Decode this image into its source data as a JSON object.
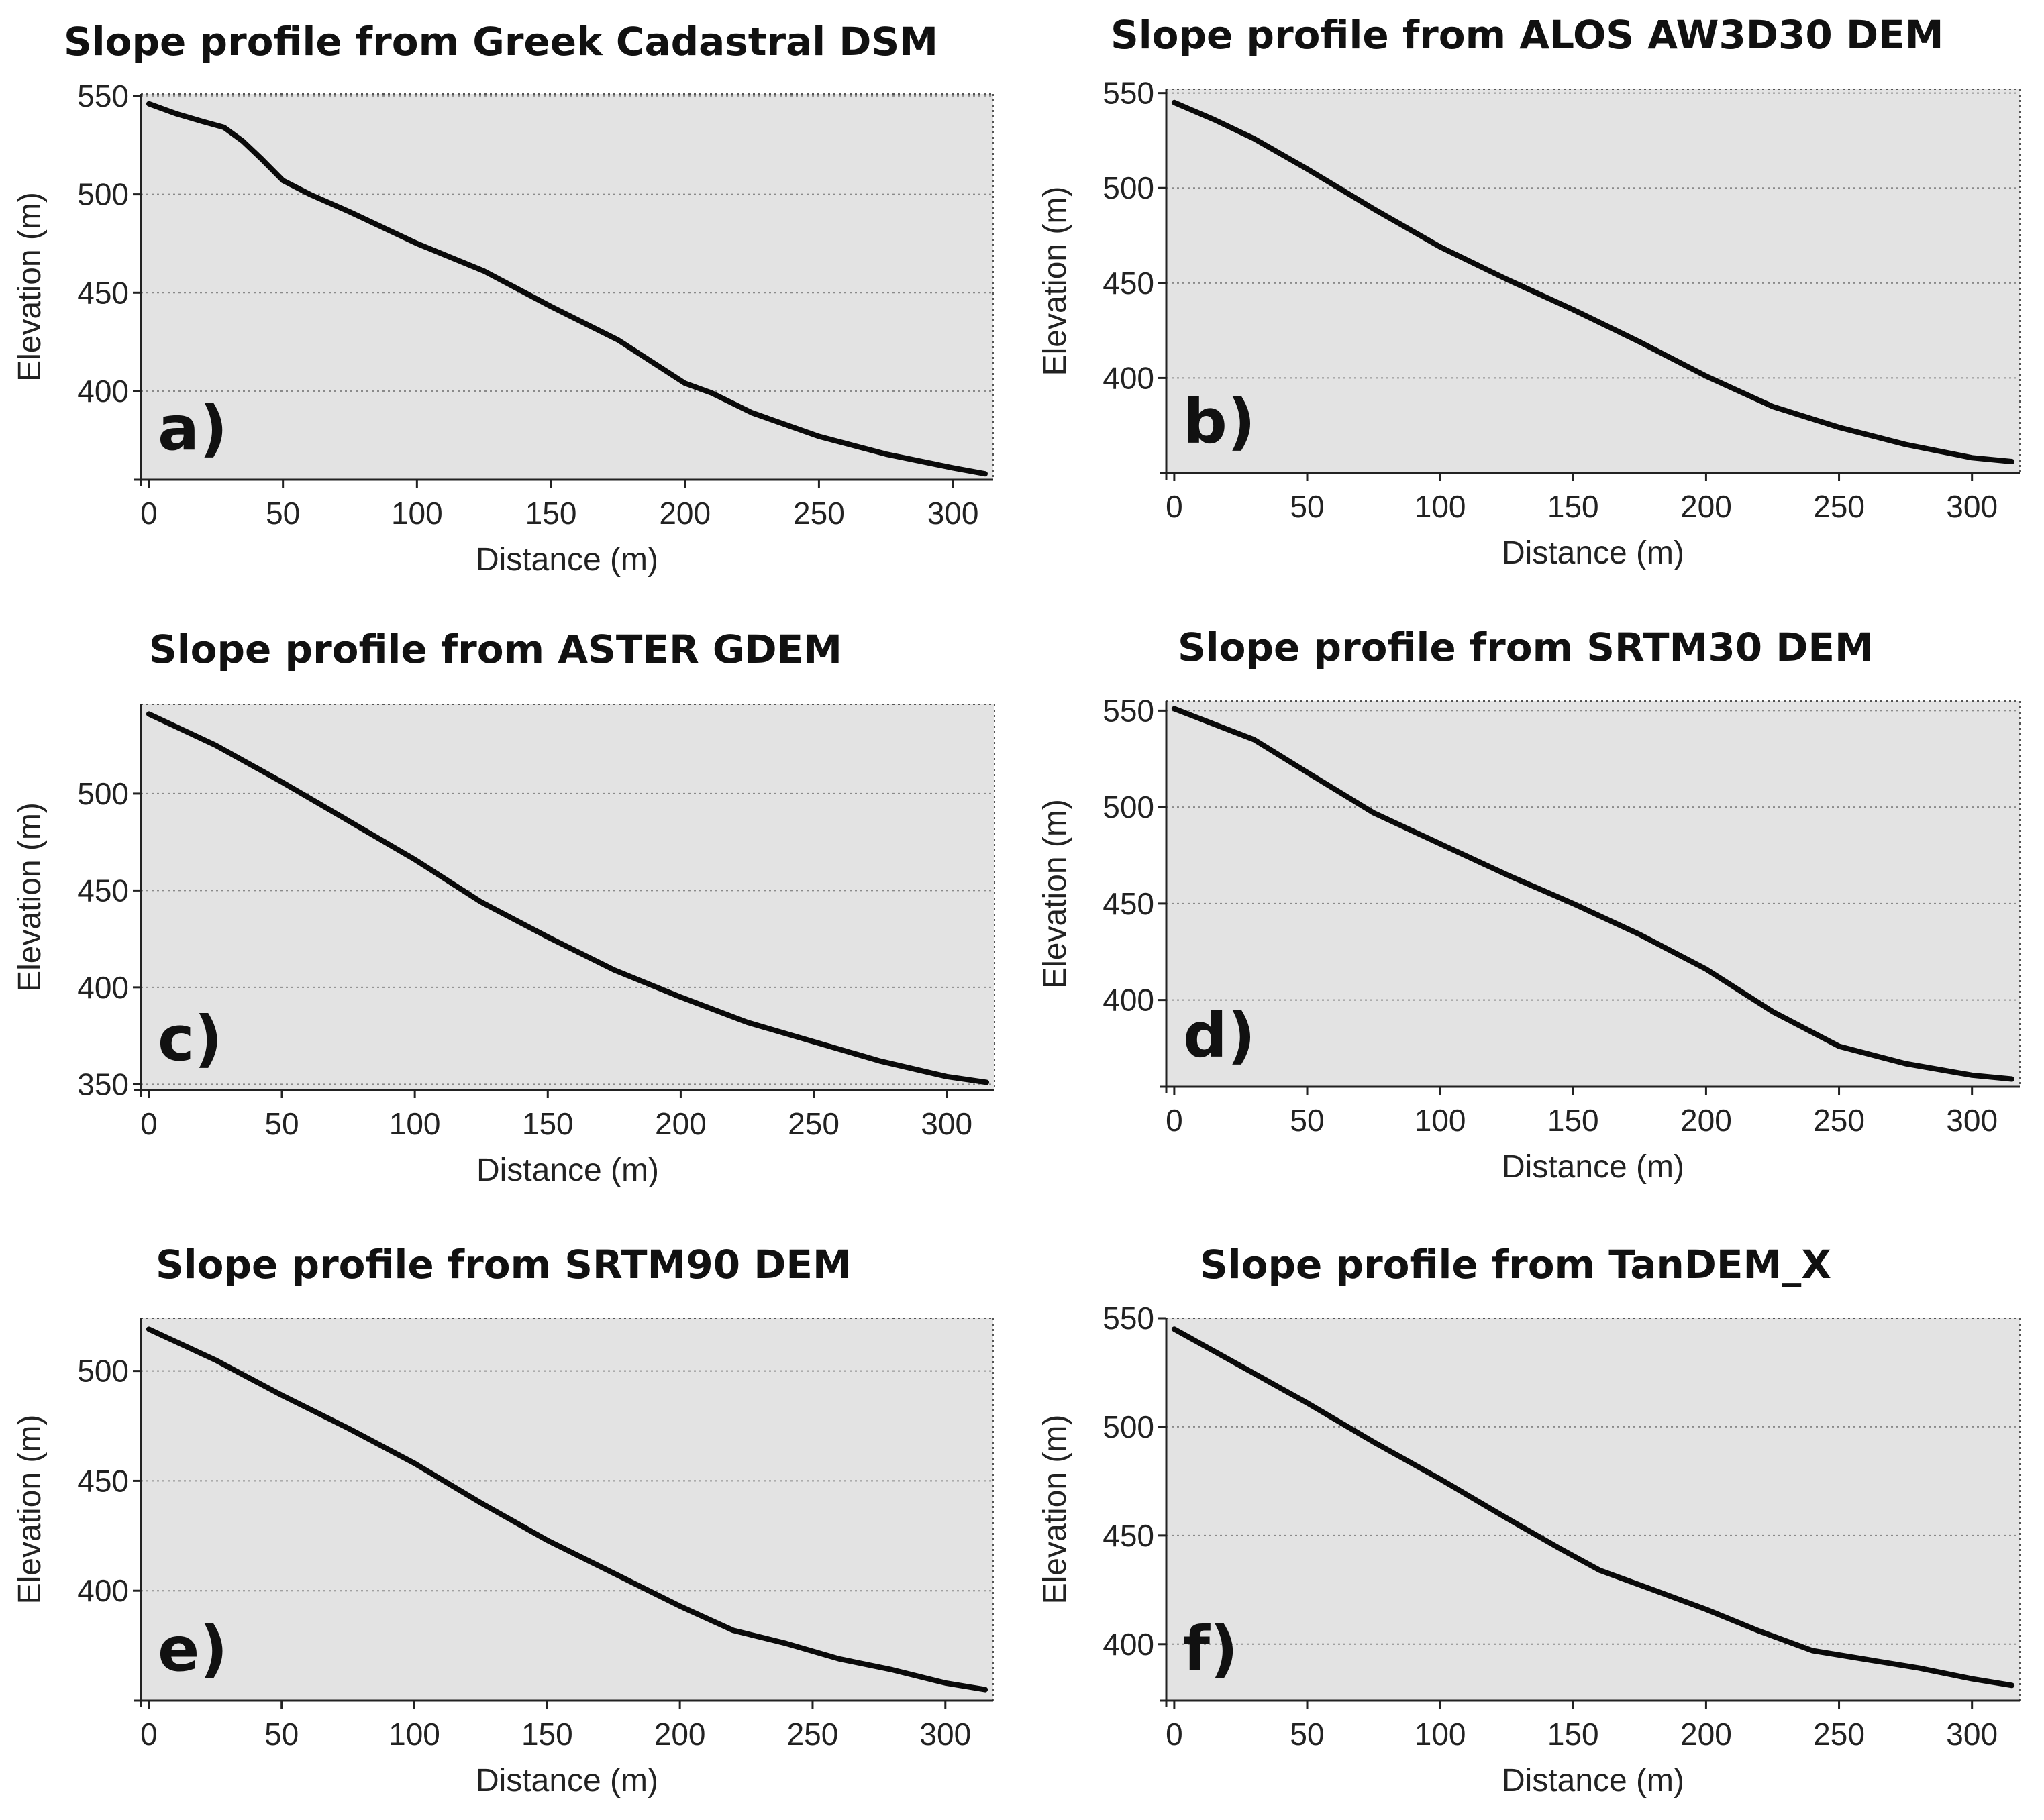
{
  "chart_data": [
    {
      "type": "line",
      "panel_label": "a)",
      "title": "Slope profile from Greek Cadastral DSM",
      "xlabel": "Distance (m)",
      "ylabel": "Elevation (m)",
      "xlim": [
        -3,
        315
      ],
      "ylim": [
        355,
        551
      ],
      "xticks": [
        0,
        50,
        100,
        150,
        200,
        250,
        300
      ],
      "yticks": [
        400,
        450,
        500,
        550
      ],
      "grid": true,
      "x": [
        0,
        10,
        20,
        28,
        35,
        42,
        50,
        60,
        75,
        100,
        125,
        150,
        175,
        200,
        210,
        225,
        250,
        275,
        300,
        312
      ],
      "y": [
        546,
        541,
        537,
        534,
        527,
        518,
        507,
        500,
        491,
        475,
        461,
        443,
        426,
        404,
        399,
        389,
        377,
        368,
        361,
        358
      ]
    },
    {
      "type": "line",
      "panel_label": "b)",
      "title": "Slope profile from ALOS AW3D30 DEM",
      "xlabel": "Distance (m)",
      "ylabel": "Elevation (m)",
      "xlim": [
        -3,
        318
      ],
      "ylim": [
        350,
        552
      ],
      "xticks": [
        0,
        50,
        100,
        150,
        200,
        250,
        300
      ],
      "yticks": [
        400,
        450,
        500,
        550
      ],
      "grid": true,
      "x": [
        0,
        15,
        30,
        50,
        75,
        100,
        125,
        150,
        175,
        200,
        225,
        250,
        275,
        300,
        315
      ],
      "y": [
        545,
        536,
        526,
        510,
        489,
        469,
        452,
        436,
        419,
        401,
        385,
        374,
        365,
        358,
        356
      ]
    },
    {
      "type": "line",
      "panel_label": "c)",
      "title": "Slope profile from ASTER GDEM",
      "xlabel": "Distance (m)",
      "ylabel": "Elevation (m)",
      "xlim": [
        -3,
        318
      ],
      "ylim": [
        347,
        546
      ],
      "xticks": [
        0,
        50,
        100,
        150,
        200,
        250,
        300
      ],
      "yticks": [
        350,
        400,
        450,
        500
      ],
      "grid": true,
      "x": [
        0,
        25,
        50,
        75,
        100,
        125,
        150,
        175,
        200,
        225,
        250,
        275,
        300,
        315
      ],
      "y": [
        541,
        525,
        506,
        486,
        466,
        444,
        426,
        409,
        395,
        382,
        372,
        362,
        354,
        351
      ]
    },
    {
      "type": "line",
      "panel_label": "d)",
      "title": "Slope profile from SRTM30 DEM",
      "xlabel": "Distance (m)",
      "ylabel": "Elevation (m)",
      "xlim": [
        -3,
        318
      ],
      "ylim": [
        355,
        555
      ],
      "xticks": [
        0,
        50,
        100,
        150,
        200,
        250,
        300
      ],
      "yticks": [
        400,
        450,
        500,
        550
      ],
      "grid": true,
      "x": [
        0,
        15,
        30,
        50,
        75,
        100,
        125,
        150,
        175,
        200,
        225,
        250,
        275,
        300,
        315
      ],
      "y": [
        551,
        543,
        535,
        518,
        497,
        481,
        465,
        450,
        434,
        416,
        394,
        376,
        367,
        361,
        359
      ]
    },
    {
      "type": "line",
      "panel_label": "e)",
      "title": "Slope profile from SRTM90 DEM",
      "xlabel": "Distance (m)",
      "ylabel": "Elevation (m)",
      "xlim": [
        -3,
        318
      ],
      "ylim": [
        350,
        524
      ],
      "xticks": [
        0,
        50,
        100,
        150,
        200,
        250,
        300
      ],
      "yticks": [
        400,
        450,
        500
      ],
      "grid": true,
      "x": [
        0,
        25,
        50,
        75,
        100,
        125,
        150,
        175,
        200,
        220,
        240,
        260,
        280,
        300,
        315
      ],
      "y": [
        519,
        505,
        489,
        474,
        458,
        440,
        423,
        408,
        393,
        382,
        376,
        369,
        364,
        358,
        355
      ]
    },
    {
      "type": "line",
      "panel_label": "f)",
      "title": "Slope profile from TanDEM_X",
      "xlabel": "Distance (m)",
      "ylabel": "Elevation (m)",
      "xlim": [
        -3,
        318
      ],
      "ylim": [
        374,
        550
      ],
      "xticks": [
        0,
        50,
        100,
        150,
        200,
        250,
        300
      ],
      "yticks": [
        400,
        450,
        500,
        550
      ],
      "grid": true,
      "x": [
        0,
        25,
        50,
        75,
        100,
        125,
        145,
        160,
        180,
        200,
        220,
        240,
        260,
        280,
        300,
        315
      ],
      "y": [
        545,
        528,
        511,
        493,
        476,
        458,
        444,
        434,
        425,
        416,
        406,
        397,
        393,
        389,
        384,
        381
      ]
    }
  ]
}
